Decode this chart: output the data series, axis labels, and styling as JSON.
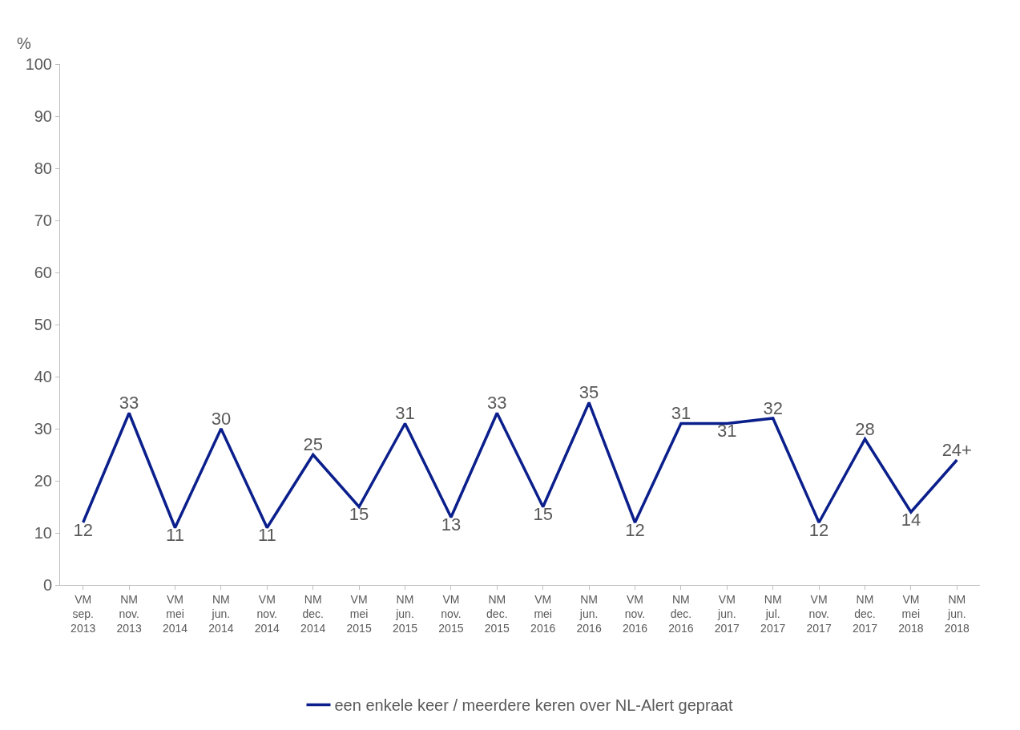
{
  "chart_data": {
    "type": "line",
    "ylabel": "%",
    "categories": [
      "VM\nsep.\n2013",
      "NM\nnov.\n2013",
      "VM\nmei\n2014",
      "NM\njun.\n2014",
      "VM\nnov.\n2014",
      "NM\ndec.\n2014",
      "VM\nmei\n2015",
      "NM\njun.\n2015",
      "VM\nnov.\n2015",
      "NM\ndec.\n2015",
      "VM\nmei\n2016",
      "NM\njun.\n2016",
      "VM\nnov.\n2016",
      "NM\ndec.\n2016",
      "VM\njun.\n2017",
      "NM\njul.\n2017",
      "VM\nnov.\n2017",
      "NM\ndec.\n2017",
      "VM\nmei\n2018",
      "NM\njun.\n2018"
    ],
    "series": [
      {
        "name": "een enkele keer / meerdere keren over NL-Alert gepraat",
        "color": "#0b1f8c",
        "values": [
          12,
          33,
          11,
          30,
          11,
          25,
          15,
          31,
          13,
          33,
          15,
          35,
          12,
          31,
          31,
          32,
          12,
          28,
          14,
          24
        ],
        "value_labels": [
          "12",
          "33",
          "11",
          "30",
          "11",
          "25",
          "15",
          "31",
          "13",
          "33",
          "15",
          "35",
          "12",
          "31",
          "31",
          "32",
          "12",
          "28",
          "14",
          "24+"
        ]
      }
    ],
    "ylim": [
      0,
      100
    ],
    "yticks": [
      0,
      10,
      20,
      30,
      40,
      50,
      60,
      70,
      80,
      90,
      100
    ],
    "legend": "bottom",
    "marker": "none",
    "line_style": "solid"
  }
}
